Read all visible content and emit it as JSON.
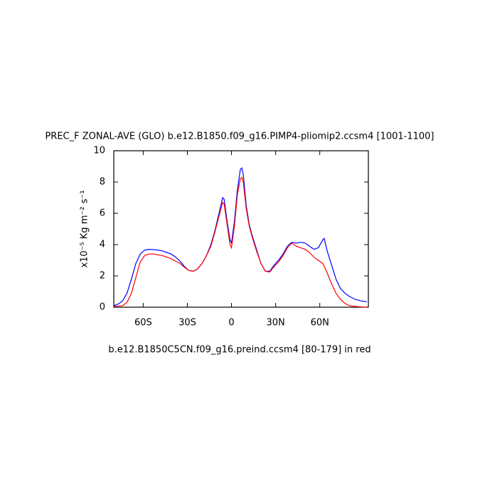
{
  "chart_data": {
    "type": "line",
    "title": "PREC_F ZONAL-AVE (GLO) b.e12.B1850.f09_g16.PIMP4-pliomip2.ccsm4 [1001-1100]",
    "y_label": "x10⁻⁵ Kg m⁻² s⁻¹",
    "note": "b.e12.B1850C5CN.f09_g16.preind.ccsm4 [80-179] in red",
    "x": [
      -80,
      -77,
      -74,
      -71,
      -68,
      -65,
      -62,
      -59,
      -56,
      -53,
      -50,
      -47,
      -44,
      -41,
      -38,
      -35,
      -32,
      -29,
      -26,
      -23,
      -20,
      -17,
      -14,
      -11,
      -8,
      -6,
      -5,
      -3,
      -1,
      0,
      2,
      4,
      6,
      7,
      8,
      10,
      12,
      14,
      17,
      20,
      23,
      26,
      29,
      32,
      35,
      38,
      41,
      44,
      47,
      50,
      53,
      56,
      59,
      62,
      63,
      65,
      68,
      71,
      74,
      77,
      80,
      84,
      88,
      92
    ],
    "series": [
      {
        "name": "b.e12.B1850.f09_g16.PIMP4-pliomip2.ccsm4",
        "color": "#0000ff",
        "values": [
          0.1,
          0.2,
          0.4,
          0.9,
          1.8,
          2.8,
          3.4,
          3.65,
          3.7,
          3.68,
          3.65,
          3.6,
          3.5,
          3.4,
          3.2,
          2.95,
          2.6,
          2.35,
          2.3,
          2.45,
          2.8,
          3.3,
          4.0,
          5.0,
          6.2,
          7.0,
          6.9,
          5.5,
          4.3,
          4.1,
          5.5,
          7.5,
          8.8,
          8.9,
          8.5,
          6.5,
          5.3,
          4.6,
          3.7,
          2.8,
          2.3,
          2.3,
          2.7,
          3.0,
          3.4,
          3.9,
          4.15,
          4.1,
          4.15,
          4.1,
          3.9,
          3.7,
          3.8,
          4.3,
          4.4,
          3.6,
          2.7,
          1.8,
          1.2,
          0.9,
          0.7,
          0.5,
          0.4,
          0.35
        ]
      },
      {
        "name": "b.e12.B1850C5CN.f09_g16.preind.ccsm4",
        "color": "#ff0000",
        "values": [
          0.05,
          0.07,
          0.1,
          0.3,
          0.9,
          1.9,
          2.9,
          3.3,
          3.4,
          3.4,
          3.35,
          3.3,
          3.2,
          3.1,
          2.95,
          2.8,
          2.55,
          2.35,
          2.3,
          2.45,
          2.8,
          3.3,
          3.9,
          4.9,
          6.0,
          6.7,
          6.6,
          5.3,
          4.0,
          3.8,
          5.2,
          7.2,
          8.2,
          8.3,
          8.0,
          6.3,
          5.2,
          4.5,
          3.6,
          2.8,
          2.3,
          2.25,
          2.6,
          2.9,
          3.3,
          3.8,
          4.1,
          3.9,
          3.8,
          3.7,
          3.5,
          3.2,
          3.0,
          2.8,
          2.6,
          2.2,
          1.5,
          0.9,
          0.5,
          0.25,
          0.1,
          0.05,
          0.02,
          0.0
        ]
      }
    ],
    "xlim": [
      -80,
      93
    ],
    "xticks": [
      {
        "value": -60,
        "label": "60S"
      },
      {
        "value": -30,
        "label": "30S"
      },
      0,
      {
        "value": 30,
        "label": "30N"
      },
      {
        "value": 60,
        "label": "60N"
      }
    ],
    "ylim": [
      0,
      10
    ],
    "yticks": [
      0,
      2,
      4,
      6,
      8,
      10
    ]
  }
}
